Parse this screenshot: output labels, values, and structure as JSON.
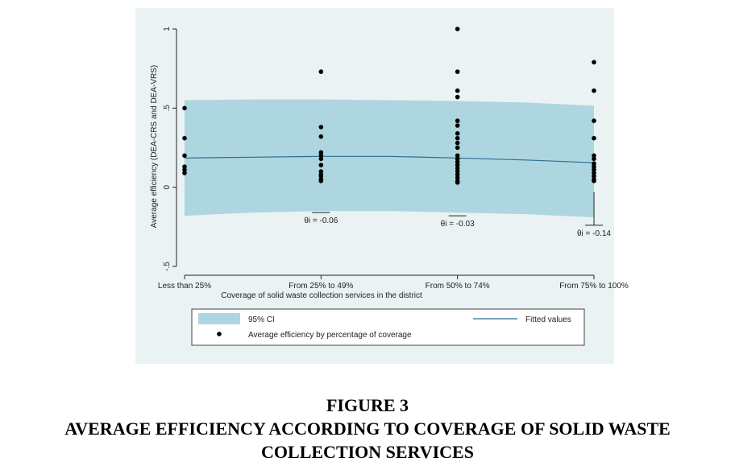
{
  "caption": {
    "figure_number": "FIGURE 3",
    "title_line1": "AVERAGE EFFICIENCY ACCORDING TO COVERAGE OF SOLID WASTE",
    "title_line2": "COLLECTION SERVICES"
  },
  "colors": {
    "panel_background": "#eaf2f3",
    "ci_band": "#aed6e0",
    "fitted_line": "#2e6b8f",
    "points": "#000000"
  },
  "chart_data": {
    "type": "scatter",
    "xlabel": "Coverage of solid waste collection services in the district",
    "ylabel": "Average efficiency (DEA-CRS and DEA-VRS)",
    "categories": [
      "Less than 25%",
      "From 25% to 49%",
      "From 50% to 74%",
      "From 75% to 100%"
    ],
    "ylim": [
      -0.5,
      1
    ],
    "yticks": [
      {
        "value": -0.5,
        "label": "-.5"
      },
      {
        "value": 0,
        "label": "0"
      },
      {
        "value": 0.5,
        "label": ".5"
      },
      {
        "value": 1,
        "label": "1"
      }
    ],
    "ci_band": {
      "name": "95% CI",
      "x": [
        1,
        1.5,
        2,
        2.5,
        3,
        3.5,
        4
      ],
      "upper": [
        0.55,
        0.555,
        0.555,
        0.55,
        0.545,
        0.535,
        0.515
      ],
      "lower": [
        -0.18,
        -0.16,
        -0.15,
        -0.15,
        -0.16,
        -0.17,
        -0.19
      ]
    },
    "fitted": {
      "name": "Fitted values",
      "x": [
        1,
        1.5,
        2,
        2.5,
        3,
        3.5,
        4
      ],
      "y": [
        0.185,
        0.19,
        0.195,
        0.195,
        0.185,
        0.172,
        0.155
      ]
    },
    "points_series": {
      "name": "Average efficiency by percentage of coverage",
      "groups": [
        {
          "x": 1,
          "y": [
            0.5,
            0.31,
            0.2,
            0.13,
            0.11,
            0.09
          ]
        },
        {
          "x": 2,
          "y": [
            0.73,
            0.38,
            0.32,
            0.22,
            0.2,
            0.18,
            0.14,
            0.1,
            0.08,
            0.07,
            0.05,
            0.04
          ]
        },
        {
          "x": 3,
          "y": [
            1.0,
            0.73,
            0.61,
            0.57,
            0.42,
            0.39,
            0.34,
            0.31,
            0.28,
            0.25,
            0.2,
            0.18,
            0.16,
            0.14,
            0.12,
            0.1,
            0.08,
            0.06,
            0.04,
            0.03
          ]
        },
        {
          "x": 4,
          "y": [
            0.79,
            0.61,
            0.42,
            0.31,
            0.2,
            0.18,
            0.15,
            0.13,
            0.11,
            0.09,
            0.07,
            0.05,
            0.04
          ]
        }
      ]
    },
    "annotations": [
      {
        "x": 2,
        "y_top": -0.16,
        "label": "θi = -0.06"
      },
      {
        "x": 3,
        "y_top": -0.18,
        "label": "θi = -0.03"
      },
      {
        "x": 4,
        "y_top": -0.24,
        "label": "θi = -0.14",
        "whisker_from": -0.03
      }
    ],
    "legend": {
      "position": "bottom",
      "entries": [
        {
          "kind": "band",
          "label": "95% CI"
        },
        {
          "kind": "line",
          "label": "Fitted values"
        },
        {
          "kind": "point",
          "label": "Average efficiency by percentage of coverage"
        }
      ]
    },
    "grid": false
  }
}
